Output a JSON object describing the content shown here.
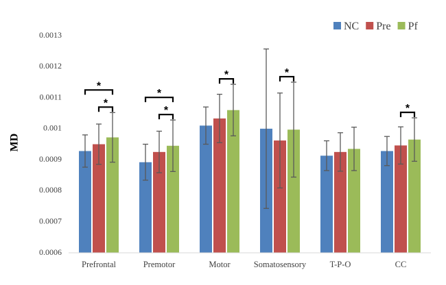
{
  "chart_data": {
    "type": "bar",
    "ylabel": "MD",
    "xlabel": "",
    "ylim": [
      0.0006,
      0.0013
    ],
    "yticks": [
      "0.0006",
      "0.0007",
      "0.0008",
      "0.0009",
      "0.001",
      "0.0011",
      "0.0012",
      "0.0013"
    ],
    "categories": [
      "Prefrontal",
      "Premotor",
      "Motor",
      "Somatosensory",
      "T-P-O",
      "CC"
    ],
    "legend_position": "top-right",
    "series": [
      {
        "name": "NC",
        "color": "#4f81bd",
        "values": [
          0.000928,
          0.000892,
          0.00101,
          0.001,
          0.000913,
          0.000928
        ],
        "errors": [
          5.2e-05,
          5.8e-05,
          6e-05,
          0.000257,
          4.8e-05,
          4.7e-05
        ]
      },
      {
        "name": "Pre",
        "color": "#c0504d",
        "values": [
          0.00095,
          0.000925,
          0.001033,
          0.000962,
          0.000925,
          0.000946
        ],
        "errors": [
          6.5e-05,
          6.7e-05,
          7.8e-05,
          0.000153,
          6.2e-05,
          6e-05
        ]
      },
      {
        "name": "Pf",
        "color": "#9bbb59",
        "values": [
          0.000972,
          0.000945,
          0.00106,
          0.000997,
          0.000935,
          0.000965
        ],
        "errors": [
          8e-05,
          8.3e-05,
          8.3e-05,
          0.000153,
          7e-05,
          7e-05
        ]
      }
    ],
    "significance": [
      {
        "category": 0,
        "from": 0,
        "to": 2,
        "label": "*"
      },
      {
        "category": 0,
        "from": 1,
        "to": 2,
        "label": "*"
      },
      {
        "category": 1,
        "from": 0,
        "to": 2,
        "label": "*"
      },
      {
        "category": 1,
        "from": 1,
        "to": 2,
        "label": "*"
      },
      {
        "category": 2,
        "from": 1,
        "to": 2,
        "label": "*"
      },
      {
        "category": 3,
        "from": 1,
        "to": 2,
        "label": "*"
      },
      {
        "category": 5,
        "from": 1,
        "to": 2,
        "label": "*"
      }
    ]
  }
}
